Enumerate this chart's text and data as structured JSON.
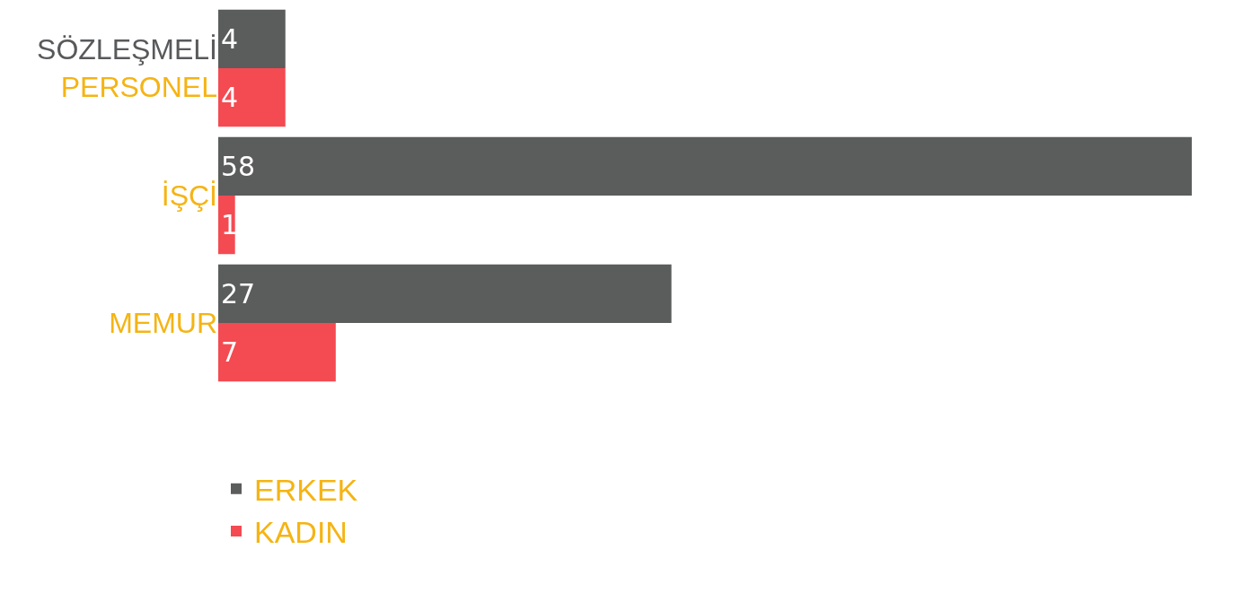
{
  "chart_data": {
    "type": "bar",
    "orientation": "horizontal",
    "categories": [
      "SÖZLEŞMELİ PERSONEL",
      "İŞÇİ",
      "MEMUR"
    ],
    "series": [
      {
        "name": "ERKEK",
        "color": "#5b5c5c",
        "values": [
          4,
          58,
          27
        ]
      },
      {
        "name": "KADIN",
        "color": "#f44a52",
        "values": [
          4,
          1,
          7
        ]
      }
    ],
    "data_labels": true,
    "legend": "bottom left"
  }
}
